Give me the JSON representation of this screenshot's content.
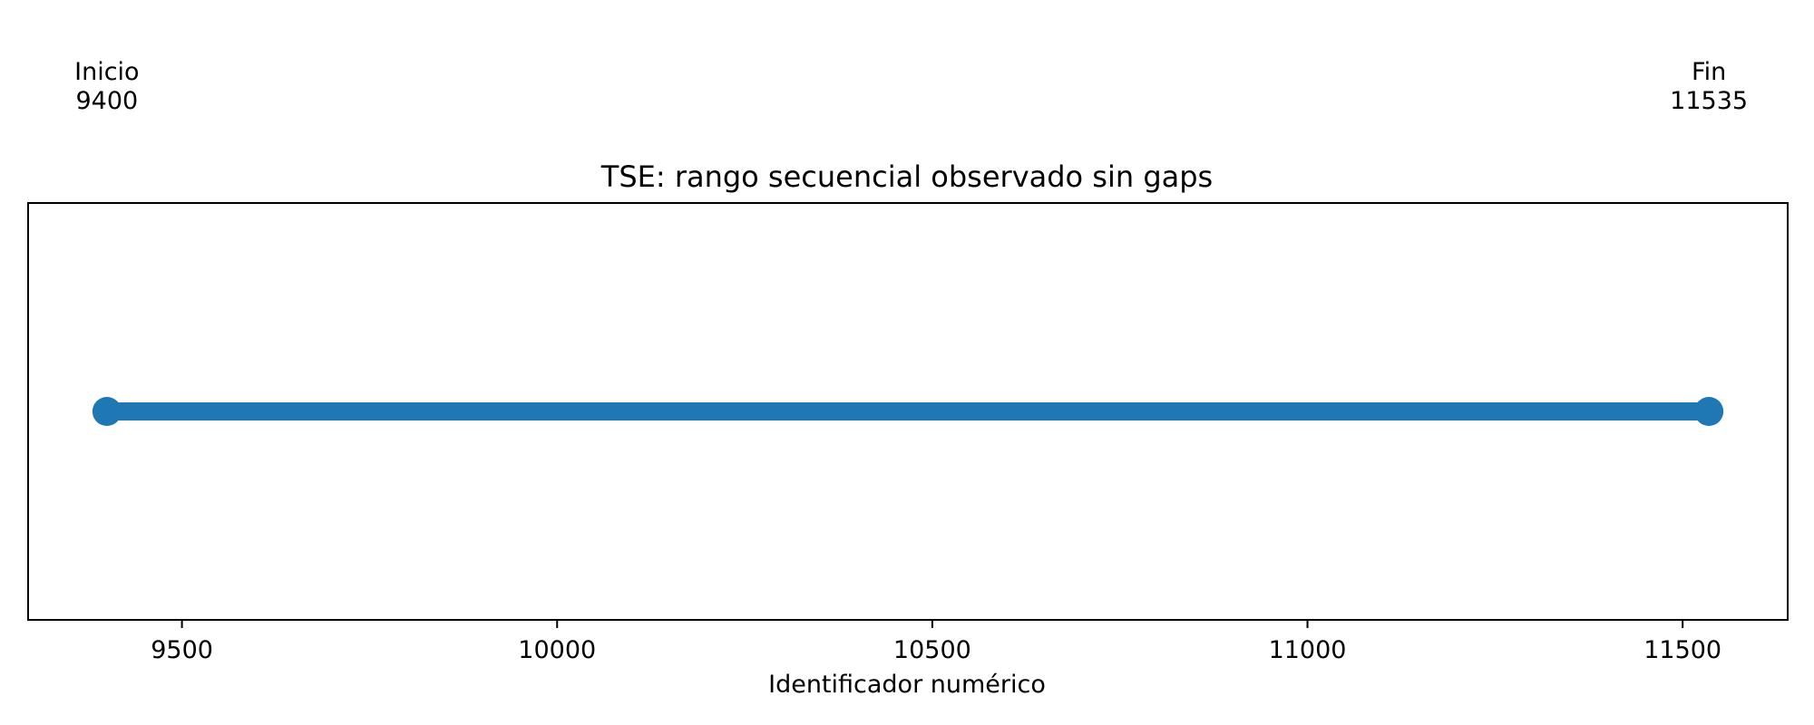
{
  "chart_data": {
    "type": "line",
    "title": "TSE: rango secuencial observado sin gaps",
    "xlabel": "Identificador numérico",
    "ylabel": "",
    "xlim": [
      9295,
      11640
    ],
    "ylim": [
      -1,
      1
    ],
    "xticks": [
      9500,
      10000,
      10500,
      11000,
      11500
    ],
    "grid": false,
    "series": [
      {
        "x": [
          9400,
          11535
        ],
        "y": [
          0,
          0
        ],
        "color": "#1f77b4"
      }
    ],
    "annotations": [
      {
        "label": "Inicio",
        "value": "9400",
        "x": 9400
      },
      {
        "label": "Fin",
        "value": "11535",
        "x": 11535
      }
    ]
  }
}
